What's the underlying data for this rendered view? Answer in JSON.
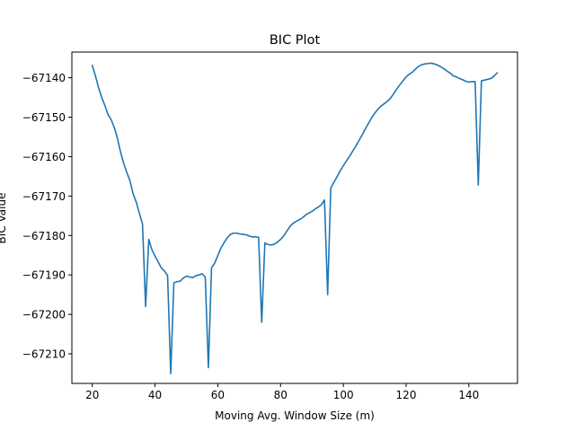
{
  "chart_data": {
    "type": "line",
    "title": "BIC Plot",
    "xlabel": "Moving Avg. Window Size (m)",
    "ylabel": "BIC Value",
    "xlim": [
      13.5,
      155.5
    ],
    "ylim": [
      -67217.5,
      -67133.5
    ],
    "xticks": [
      20,
      40,
      60,
      80,
      100,
      120,
      140
    ],
    "xtick_labels": [
      "20",
      "40",
      "60",
      "80",
      "100",
      "120",
      "140"
    ],
    "yticks": [
      -67140,
      -67150,
      -67160,
      -67170,
      -67180,
      -67190,
      -67200,
      -67210
    ],
    "ytick_labels": [
      "−67140",
      "−67150",
      "−67160",
      "−67170",
      "−67180",
      "−67190",
      "−67200",
      "−67210"
    ],
    "grid": false,
    "colors": {
      "line": "#1f77b4",
      "axes": "#000000",
      "background": "#ffffff"
    },
    "series": [
      {
        "x": [
          20,
          21,
          22,
          23,
          24,
          25,
          26,
          27,
          28,
          29,
          30,
          31,
          32,
          33,
          34,
          35,
          36,
          37,
          38,
          39,
          40,
          41,
          42,
          43,
          44,
          45,
          46,
          47,
          48,
          49,
          50,
          51,
          52,
          53,
          54,
          55,
          56,
          57,
          58,
          59,
          60,
          61,
          62,
          63,
          64,
          65,
          66,
          67,
          68,
          69,
          70,
          71,
          72,
          73,
          74,
          75,
          76,
          77,
          78,
          79,
          80,
          81,
          82,
          83,
          84,
          85,
          86,
          87,
          88,
          89,
          90,
          91,
          92,
          93,
          94,
          95,
          96,
          97,
          98,
          99,
          100,
          101,
          102,
          103,
          104,
          105,
          106,
          107,
          108,
          109,
          110,
          111,
          112,
          113,
          114,
          115,
          116,
          117,
          118,
          119,
          120,
          121,
          122,
          123,
          124,
          125,
          126,
          127,
          128,
          129,
          130,
          131,
          132,
          133,
          134,
          135,
          136,
          137,
          138,
          139,
          140,
          141,
          142,
          143,
          144,
          145,
          146,
          147,
          148,
          149
        ],
        "y": [
          -67136.9,
          -67139.5,
          -67142.5,
          -67145,
          -67147,
          -67149.3,
          -67150.6,
          -67152.6,
          -67155.3,
          -67158.8,
          -67161.7,
          -67164,
          -67166.1,
          -67169.4,
          -67171.5,
          -67174.4,
          -67177,
          -67198,
          -67181,
          -67183.6,
          -67185.2,
          -67186.7,
          -67188.2,
          -67189,
          -67190.2,
          -67215,
          -67192,
          -67191.7,
          -67191.6,
          -67190.8,
          -67190.3,
          -67190.5,
          -67190.7,
          -67190.2,
          -67190,
          -67189.7,
          -67190.5,
          -67213.5,
          -67188.2,
          -67187,
          -67185.1,
          -67183.2,
          -67181.8,
          -67180.6,
          -67179.7,
          -67179.4,
          -67179.4,
          -67179.6,
          -67179.7,
          -67179.8,
          -67180.1,
          -67180.4,
          -67180.3,
          -67180.5,
          -67202,
          -67181.9,
          -67182.3,
          -67182.4,
          -67182.2,
          -67181.7,
          -67181,
          -67180.1,
          -67178.9,
          -67177.7,
          -67176.9,
          -67176.4,
          -67176,
          -67175.5,
          -67174.8,
          -67174.3,
          -67173.9,
          -67173.3,
          -67172.8,
          -67172.2,
          -67171,
          -67195,
          -67168,
          -67166.5,
          -67165.1,
          -67163.6,
          -67162.3,
          -67161.1,
          -67159.9,
          -67158.6,
          -67157.3,
          -67155.9,
          -67154.5,
          -67153,
          -67151.6,
          -67150.2,
          -67149,
          -67148,
          -67147.2,
          -67146.6,
          -67146,
          -67145.2,
          -67144.1,
          -67142.9,
          -67141.8,
          -67140.8,
          -67139.8,
          -67139.1,
          -67138.6,
          -67137.8,
          -67137.1,
          -67136.7,
          -67136.5,
          -67136.4,
          -67136.3,
          -67136.5,
          -67136.8,
          -67137.2,
          -67137.7,
          -67138.3,
          -67138.8,
          -67139.5,
          -67139.8,
          -67140.2,
          -67140.5,
          -67140.9,
          -67141.1,
          -67141,
          -67141,
          -67167.2,
          -67140.8,
          -67140.6,
          -67140.4,
          -67140.2,
          -67139.6,
          -67138.8
        ]
      }
    ]
  }
}
